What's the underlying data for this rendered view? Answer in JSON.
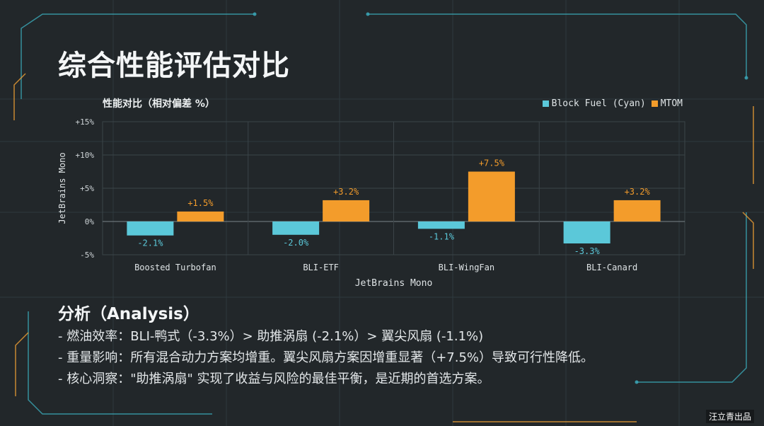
{
  "page": {
    "title": "综合性能评估对比",
    "watermark": "汪立青出品"
  },
  "chart_data": {
    "type": "bar",
    "title": "性能对比（相对偏差 %）",
    "categories": [
      "Boosted Turbofan",
      "BLI-ETF",
      "BLI-WingFan",
      "BLI-Canard"
    ],
    "series": [
      {
        "name": "Block Fuel (Cyan)",
        "values": [
          -2.1,
          -2.0,
          -1.1,
          -3.3
        ],
        "labels": [
          "-2.1%",
          "-2.0%",
          "-1.1%",
          "-3.3%"
        ],
        "color": "#5bc8d9"
      },
      {
        "name": "MTOM",
        "values": [
          1.5,
          3.2,
          7.5,
          3.2
        ],
        "labels": [
          "+1.5%",
          "+3.2%",
          "+7.5%",
          "+3.2%"
        ],
        "color": "#f39c2b"
      }
    ],
    "xlabel": "JetBrains Mono",
    "ylabel": "JetBrains Mono",
    "ylim": [
      -5,
      15
    ],
    "yticks": [
      -5,
      0,
      5,
      10,
      15
    ],
    "ytick_labels": [
      "-5%",
      "0%",
      "+5%",
      "+10%",
      "+15%"
    ],
    "grid": true,
    "legend_position": "top-right"
  },
  "analysis": {
    "title": "分析（Analysis）",
    "points": [
      "- 燃油效率：BLI-鸭式（-3.3%）> 助推涡扇 (-2.1%）> 翼尖风扇 (-1.1%)",
      "- 重量影响：所有混合动力方案均增重。翼尖风扇方案因增重显著（+7.5%）导致可行性降低。",
      "- 核心洞察：\"助推涡扇\" 实现了收益与风险的最佳平衡，是近期的首选方案。"
    ]
  }
}
